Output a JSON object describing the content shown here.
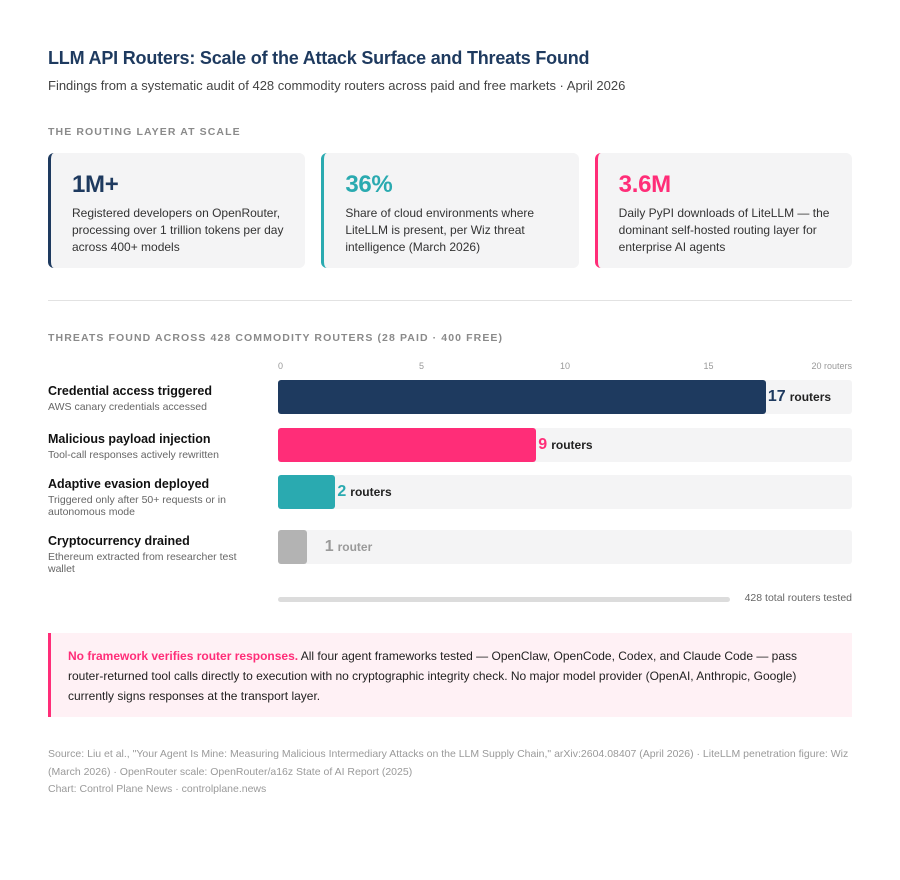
{
  "header": {
    "title": "LLM API Routers: Scale of the Attack Surface and Threats Found",
    "subtitle": "Findings from a systematic audit of 428 commodity routers across paid and free markets · April 2026"
  },
  "scale_section": {
    "label": "THE ROUTING LAYER AT SCALE",
    "stats": [
      {
        "value": "1M+",
        "description": "Registered developers on OpenRouter, processing over 1 trillion tokens per day across 400+ models",
        "color": "#1e3a5f"
      },
      {
        "value": "36%",
        "description": "Share of cloud environments where LiteLLM is present, per Wiz threat intelligence (March 2026)",
        "color": "#2aaab0"
      },
      {
        "value": "3.6M",
        "description": "Daily PyPI downloads of LiteLLM — the dominant self-hosted routing layer for enterprise AI agents",
        "color": "#ff2d78"
      }
    ]
  },
  "chart_section": {
    "label": "THREATS FOUND ACROSS 428 COMMODITY ROUTERS (28 PAID · 400 FREE)",
    "total_label": "428 total routers tested"
  },
  "chart_data": {
    "type": "bar",
    "orientation": "horizontal",
    "xlim": [
      0,
      20
    ],
    "ticks": [
      "0",
      "5",
      "10",
      "15",
      "20 routers"
    ],
    "categories": [
      "Credential access triggered",
      "Malicious payload injection",
      "Adaptive evasion deployed",
      "Cryptocurrency drained"
    ],
    "subtitles": [
      "AWS canary credentials accessed",
      "Tool-call responses actively rewritten",
      "Triggered only after 50+ requests or in autonomous mode",
      "Ethereum extracted from researcher test wallet"
    ],
    "values": [
      17,
      9,
      2,
      1
    ],
    "units": [
      "routers",
      "routers",
      "routers",
      "router"
    ],
    "colors": [
      "#1e3a5f",
      "#ff2d78",
      "#2aaab0",
      "#b3b3b3"
    ]
  },
  "callout": {
    "lead": "No framework verifies router responses.",
    "body": " All four agent frameworks tested — OpenClaw, OpenCode, Codex, and Claude Code — pass router-returned tool calls directly to execution with no cryptographic integrity check. No major model provider (OpenAI, Anthropic, Google) currently signs responses at the transport layer."
  },
  "footer": {
    "source": "Source: Liu et al., \"Your Agent Is Mine: Measuring Malicious Intermediary Attacks on the LLM Supply Chain,\" arXiv:2604.08407 (April 2026) · LiteLLM penetration figure: Wiz (March 2026) · OpenRouter scale: OpenRouter/a16z State of AI Report (2025)",
    "credit": "Chart: Control Plane News · controlplane.news"
  }
}
